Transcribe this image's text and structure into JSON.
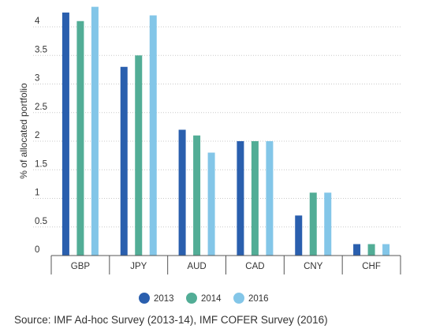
{
  "chart_data": {
    "type": "bar",
    "title": "",
    "xlabel": "",
    "ylabel": "% of allocated portfolio",
    "categories": [
      "GBP",
      "JPY",
      "AUD",
      "CAD",
      "CNY",
      "CHF"
    ],
    "series": [
      {
        "name": "2013",
        "color": "#2a5fae",
        "values": [
          4.25,
          3.3,
          2.2,
          2.0,
          0.7,
          0.2
        ]
      },
      {
        "name": "2014",
        "color": "#52ad96",
        "values": [
          4.1,
          3.5,
          2.1,
          2.0,
          1.1,
          0.2
        ]
      },
      {
        "name": "2016",
        "color": "#83c6e8",
        "values": [
          4.35,
          4.2,
          1.8,
          2.0,
          1.1,
          0.2
        ]
      }
    ],
    "yticks": [
      "0",
      "0.5",
      "1",
      "1.5",
      "2",
      "2.5",
      "3",
      "3.5",
      "4"
    ],
    "ylim": [
      0,
      4.4
    ],
    "grid": true,
    "legend_position": "bottom-center"
  },
  "source": "Source: IMF Ad-hoc Survey (2013-14), IMF COFER Survey (2016)"
}
